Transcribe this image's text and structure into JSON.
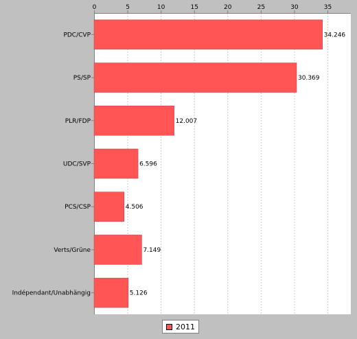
{
  "chart_data": {
    "type": "bar",
    "orientation": "horizontal",
    "categories": [
      "PDC/CVP",
      "PS/SP",
      "PLR/FDP",
      "UDC/SVP",
      "PCS/CSP",
      "Verts/Grüne",
      "Indépendant/Unabhängig"
    ],
    "series": [
      {
        "name": "2011",
        "values": [
          34.246,
          30.369,
          12.007,
          6.596,
          4.506,
          7.149,
          5.126
        ],
        "color": "#ff5555"
      }
    ],
    "data_labels": [
      "34.246",
      "30.369",
      "12.007",
      "6.596",
      "4.506",
      "7.149",
      "5.126"
    ],
    "x_ticks": [
      "0",
      "5",
      "10",
      "15",
      "20",
      "25",
      "30",
      "35"
    ],
    "xlim": [
      0,
      38.5
    ],
    "x_axis_position": "top",
    "grid": true,
    "legend_position": "bottom",
    "colors": {
      "background": "#c0c0c0",
      "plot": "#ffffff",
      "bar": "#ff5555",
      "grid": "#cccccc"
    }
  }
}
